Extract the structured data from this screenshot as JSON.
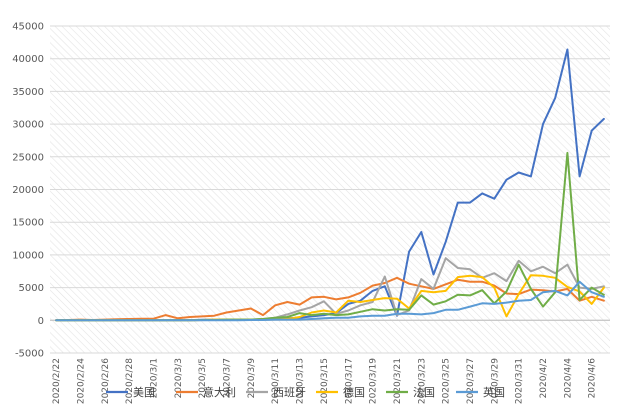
{
  "chart_data": {
    "type": "line",
    "title": "",
    "xlabel": "",
    "ylabel": "",
    "ylim": [
      -5000,
      45000
    ],
    "yticks": [
      -5000,
      0,
      5000,
      10000,
      15000,
      20000,
      25000,
      30000,
      35000,
      40000,
      45000
    ],
    "grid": "diagonal-hatch",
    "legend": "bottom",
    "x": [
      "2020/2/22",
      "2020/2/23",
      "2020/2/24",
      "2020/2/25",
      "2020/2/26",
      "2020/2/27",
      "2020/2/28",
      "2020/2/29",
      "2020/3/1",
      "2020/3/2",
      "2020/3/3",
      "2020/3/4",
      "2020/3/5",
      "2020/3/6",
      "2020/3/7",
      "2020/3/8",
      "2020/3/9",
      "2020/3/10",
      "2020/3/11",
      "2020/3/12",
      "2020/3/13",
      "2020/3/14",
      "2020/3/15",
      "2020/3/16",
      "2020/3/17",
      "2020/3/18",
      "2020/3/19",
      "2020/3/20",
      "2020/3/21",
      "2020/3/22",
      "2020/3/23",
      "2020/3/24",
      "2020/3/25",
      "2020/3/26",
      "2020/3/27",
      "2020/3/28",
      "2020/3/29",
      "2020/3/30",
      "2020/3/31",
      "2020/4/1",
      "2020/4/2",
      "2020/4/3",
      "2020/4/4",
      "2020/4/5",
      "2020/4/6",
      "2020/4/7"
    ],
    "xtick_labels": [
      "2020/2/22",
      "2020/2/24",
      "2020/2/26",
      "2020/2/28",
      "2020/3/1",
      "2020/3/3",
      "2020/3/5",
      "2020/3/7",
      "2020/3/9",
      "2020/3/11",
      "2020/3/13",
      "2020/3/15",
      "2020/3/17",
      "2020/3/19",
      "2020/3/21",
      "2020/3/23",
      "2020/3/25",
      "2020/3/27",
      "2020/3/29",
      "2020/3/31",
      "2020/4/2",
      "2020/4/4",
      "2020/4/6"
    ],
    "series": [
      {
        "name": "美国",
        "color": "#4472C4",
        "values": [
          0,
          0,
          0,
          0,
          0,
          0,
          0,
          0,
          0,
          20,
          50,
          30,
          70,
          100,
          100,
          100,
          100,
          150,
          200,
          300,
          400,
          600,
          800,
          1100,
          2500,
          3000,
          4500,
          5200,
          700,
          10500,
          13500,
          7000,
          12000,
          18000,
          18000,
          19400,
          18600,
          21500,
          22600,
          22000,
          30000,
          34000,
          41400,
          22000,
          29000,
          30800
        ]
      },
      {
        "name": "意大利",
        "color": "#ED7D31",
        "values": [
          0,
          50,
          100,
          50,
          100,
          150,
          200,
          250,
          250,
          800,
          300,
          500,
          600,
          700,
          1200,
          1500,
          1800,
          800,
          2300,
          2800,
          2400,
          3500,
          3600,
          3200,
          3500,
          4200,
          5300,
          5700,
          6500,
          5600,
          5200,
          4800,
          5500,
          6200,
          5900,
          5900,
          5300,
          4100,
          4000,
          4700,
          4600,
          4400,
          4800,
          3000,
          3600,
          3000
        ]
      },
      {
        "name": "西班牙",
        "color": "#A5A5A5",
        "values": [
          0,
          0,
          0,
          0,
          0,
          0,
          0,
          0,
          0,
          0,
          0,
          0,
          50,
          100,
          100,
          100,
          100,
          200,
          400,
          900,
          1500,
          2000,
          2900,
          1000,
          1500,
          2300,
          2800,
          6700,
          800,
          1500,
          6300,
          4800,
          9500,
          8000,
          7800,
          6500,
          7200,
          6000,
          9100,
          7500,
          8200,
          7200,
          8500,
          5000,
          4800,
          5200
        ]
      },
      {
        "name": "德国",
        "color": "#FFC000",
        "values": [
          0,
          0,
          0,
          0,
          0,
          0,
          0,
          0,
          0,
          0,
          0,
          0,
          50,
          100,
          100,
          100,
          100,
          150,
          200,
          200,
          500,
          1200,
          1500,
          1200,
          3000,
          2800,
          3100,
          3400,
          3300,
          1800,
          4500,
          4300,
          4500,
          6600,
          6800,
          6600,
          5000,
          600,
          4000,
          6900,
          6800,
          6500,
          5100,
          4400,
          2500,
          5000
        ]
      },
      {
        "name": "法国",
        "color": "#70AD47",
        "values": [
          0,
          0,
          0,
          0,
          0,
          0,
          0,
          0,
          0,
          0,
          0,
          0,
          50,
          50,
          100,
          100,
          100,
          200,
          400,
          500,
          1100,
          800,
          1000,
          800,
          900,
          1300,
          1700,
          1500,
          1700,
          1600,
          3800,
          2400,
          2900,
          3900,
          3800,
          4600,
          2600,
          4400,
          8500,
          4800,
          2100,
          4300,
          25600,
          3100,
          5000,
          3900
        ]
      },
      {
        "name": "英国",
        "color": "#5B9BD5",
        "values": [
          0,
          0,
          0,
          0,
          0,
          0,
          0,
          0,
          0,
          0,
          0,
          0,
          0,
          0,
          0,
          0,
          50,
          50,
          100,
          100,
          100,
          200,
          300,
          400,
          400,
          600,
          700,
          700,
          1000,
          1000,
          900,
          1100,
          1600,
          1600,
          2100,
          2600,
          2500,
          2700,
          3000,
          3100,
          4300,
          4500,
          3800,
          5900,
          4300,
          3600
        ]
      }
    ]
  }
}
